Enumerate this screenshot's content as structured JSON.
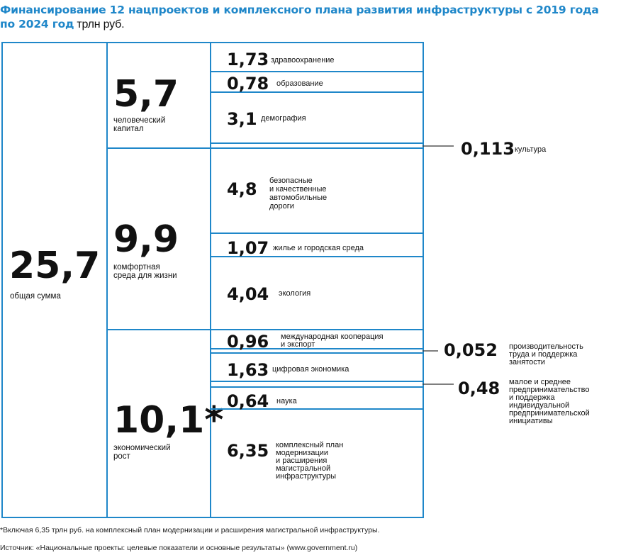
{
  "header": {
    "title": "Финансирование 12 нацпроектов и комплексного плана развития инфраструктуры  с 2019 года по 2024 год",
    "unit": "трлн руб."
  },
  "chart_data": {
    "type": "treemap",
    "total": {
      "value": "25,7",
      "label": "общая сумма"
    },
    "groups": [
      {
        "value": "5,7",
        "label_lines": [
          "человеческий",
          "капитал"
        ],
        "items": [
          {
            "value": "1,73",
            "label_lines": [
              "здравоохранение"
            ]
          },
          {
            "value": "0,78",
            "label_lines": [
              "образование"
            ]
          },
          {
            "value": "3,1",
            "label_lines": [
              "демография"
            ]
          },
          {
            "value": "0,113",
            "label_lines": [
              "культура"
            ]
          }
        ]
      },
      {
        "value": "9,9",
        "label_lines": [
          "комфортная",
          "среда для жизни"
        ],
        "items": [
          {
            "value": "4,8",
            "label_lines": [
              "безопасные",
              "и качественные",
              "автомобильные",
              "дороги"
            ]
          },
          {
            "value": "1,07",
            "label_lines": [
              "жилье и городская среда"
            ]
          },
          {
            "value": "4,04",
            "label_lines": [
              "экология"
            ]
          }
        ]
      },
      {
        "value": "10,1*",
        "label_lines": [
          "экономический",
          "рост"
        ],
        "items": [
          {
            "value": "0,96",
            "label_lines": [
              "международная кооперация",
              "и экспорт"
            ]
          },
          {
            "value": "0,052",
            "label_lines": [
              "производительность",
              "труда и поддержка",
              "занятости"
            ]
          },
          {
            "value": "1,63",
            "label_lines": [
              "цифровая экономика"
            ]
          },
          {
            "value": "0,48",
            "label_lines": [
              "малое и среднее",
              "предпринимательство",
              "и поддержка",
              "индивидуальной",
              "предпринимательской",
              "инициативы"
            ]
          },
          {
            "value": "0,64",
            "label_lines": [
              "наука"
            ]
          },
          {
            "value": "6,35",
            "label_lines": [
              "комплексный план",
              "модернизации",
              "и расширения",
              "магистральной",
              "инфраструктуры"
            ]
          }
        ]
      }
    ],
    "colors": {
      "border": "#1f87c9",
      "title": "#1f87c9",
      "callout_line": "#333333",
      "text": "#111111"
    }
  },
  "footnotes": {
    "note": "*Включая 6,35 трлн руб. на комплексный план модернизации и расширения магистральной инфраструктуры.",
    "source": "Источник: «Национальные проекты: целевые показатели и основные результаты» (www.government.ru)"
  }
}
